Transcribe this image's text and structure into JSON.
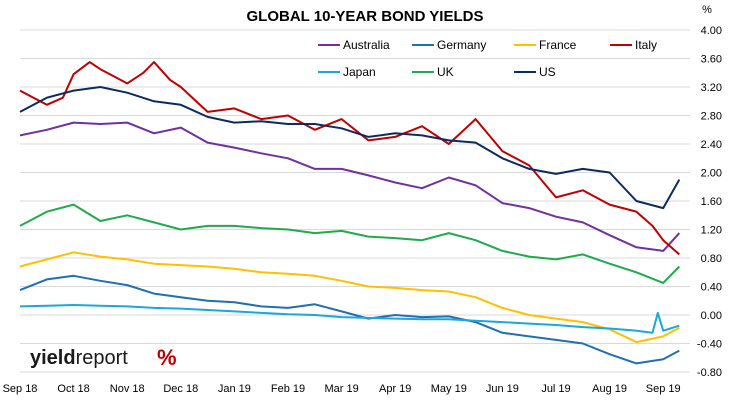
{
  "chart_data": {
    "type": "line",
    "title": "GLOBAL 10-YEAR BOND YIELDS",
    "unit_label": "%",
    "ylim": [
      -0.8,
      4.0
    ],
    "yticks": [
      "4.00",
      "3.60",
      "3.20",
      "2.80",
      "2.40",
      "2.00",
      "1.60",
      "1.20",
      "0.80",
      "0.40",
      "0.00",
      "-0.40",
      "-0.80"
    ],
    "xlim": [
      0,
      12.5
    ],
    "x_tick_labels": [
      "Sep 18",
      "Oct 18",
      "Nov 18",
      "Dec 18",
      "Jan 19",
      "Feb 19",
      "Mar 19",
      "Apr 19",
      "May 19",
      "Jun 19",
      "Jul 19",
      "Aug 19",
      "Sep 19"
    ],
    "grid": true,
    "legend_position": "top-right",
    "series": [
      {
        "name": "Australia",
        "color": "#7030a0",
        "x": [
          0,
          0.5,
          1,
          1.5,
          2,
          2.5,
          3,
          3.5,
          4,
          4.5,
          5,
          5.5,
          6,
          6.5,
          7,
          7.5,
          8,
          8.5,
          9,
          9.5,
          10,
          10.5,
          11,
          11.5,
          12,
          12.3
        ],
        "values": [
          2.52,
          2.6,
          2.7,
          2.68,
          2.7,
          2.55,
          2.63,
          2.42,
          2.35,
          2.27,
          2.2,
          2.05,
          2.05,
          1.96,
          1.86,
          1.78,
          1.93,
          1.82,
          1.57,
          1.5,
          1.38,
          1.3,
          1.12,
          0.95,
          0.9,
          1.15
        ]
      },
      {
        "name": "Germany",
        "color": "#1f6fb2",
        "x": [
          0,
          0.5,
          1,
          1.5,
          2,
          2.5,
          3,
          3.5,
          4,
          4.5,
          5,
          5.5,
          6,
          6.5,
          7,
          7.5,
          8,
          8.5,
          9,
          9.5,
          10,
          10.5,
          11,
          11.5,
          12,
          12.3
        ],
        "values": [
          0.35,
          0.5,
          0.55,
          0.48,
          0.42,
          0.3,
          0.25,
          0.2,
          0.18,
          0.12,
          0.1,
          0.15,
          0.05,
          -0.05,
          0.0,
          -0.03,
          -0.02,
          -0.1,
          -0.25,
          -0.3,
          -0.35,
          -0.4,
          -0.55,
          -0.68,
          -0.62,
          -0.5
        ]
      },
      {
        "name": "France",
        "color": "#ffc000",
        "x": [
          0,
          0.5,
          1,
          1.5,
          2,
          2.5,
          3,
          3.5,
          4,
          4.5,
          5,
          5.5,
          6,
          6.5,
          7,
          7.5,
          8,
          8.5,
          9,
          9.5,
          10,
          10.5,
          11,
          11.5,
          12,
          12.3
        ],
        "values": [
          0.68,
          0.78,
          0.88,
          0.82,
          0.78,
          0.72,
          0.7,
          0.68,
          0.65,
          0.6,
          0.58,
          0.55,
          0.48,
          0.4,
          0.38,
          0.35,
          0.33,
          0.25,
          0.1,
          0.0,
          -0.05,
          -0.1,
          -0.2,
          -0.38,
          -0.3,
          -0.18
        ]
      },
      {
        "name": "Italy",
        "color": "#c00000",
        "x": [
          0,
          0.5,
          0.8,
          1,
          1.3,
          1.5,
          2,
          2.3,
          2.5,
          2.8,
          3,
          3.5,
          4,
          4.5,
          5,
          5.5,
          6,
          6.5,
          7,
          7.5,
          8,
          8.5,
          9,
          9.5,
          10,
          10.5,
          11,
          11.5,
          11.8,
          12,
          12.3
        ],
        "values": [
          3.15,
          2.95,
          3.05,
          3.38,
          3.55,
          3.45,
          3.25,
          3.4,
          3.55,
          3.3,
          3.2,
          2.85,
          2.9,
          2.75,
          2.8,
          2.6,
          2.75,
          2.45,
          2.5,
          2.65,
          2.4,
          2.75,
          2.3,
          2.1,
          1.65,
          1.75,
          1.55,
          1.45,
          1.25,
          1.05,
          0.85
        ]
      },
      {
        "name": "Japan",
        "color": "#1aa7d9",
        "x": [
          0,
          0.5,
          1,
          1.5,
          2,
          2.5,
          3,
          3.5,
          4,
          4.5,
          5,
          5.5,
          6,
          6.5,
          7,
          7.5,
          8,
          8.5,
          9,
          9.5,
          10,
          10.5,
          11,
          11.5,
          11.8,
          11.9,
          12,
          12.3
        ],
        "values": [
          0.12,
          0.13,
          0.14,
          0.13,
          0.12,
          0.1,
          0.09,
          0.07,
          0.05,
          0.03,
          0.01,
          0.0,
          -0.03,
          -0.04,
          -0.05,
          -0.06,
          -0.06,
          -0.08,
          -0.1,
          -0.12,
          -0.14,
          -0.17,
          -0.19,
          -0.22,
          -0.25,
          0.03,
          -0.22,
          -0.15
        ]
      },
      {
        "name": "UK",
        "color": "#1faa4b",
        "x": [
          0,
          0.5,
          1,
          1.5,
          2,
          2.5,
          3,
          3.5,
          4,
          4.5,
          5,
          5.5,
          6,
          6.5,
          7,
          7.5,
          8,
          8.5,
          9,
          9.5,
          10,
          10.5,
          11,
          11.5,
          12,
          12.3
        ],
        "values": [
          1.25,
          1.45,
          1.55,
          1.32,
          1.4,
          1.3,
          1.2,
          1.25,
          1.25,
          1.22,
          1.2,
          1.15,
          1.18,
          1.1,
          1.08,
          1.05,
          1.15,
          1.05,
          0.9,
          0.82,
          0.78,
          0.85,
          0.72,
          0.6,
          0.45,
          0.68
        ]
      },
      {
        "name": "US",
        "color": "#0c2b5e",
        "x": [
          0,
          0.5,
          1,
          1.5,
          2,
          2.5,
          3,
          3.5,
          4,
          4.5,
          5,
          5.5,
          6,
          6.5,
          7,
          7.5,
          8,
          8.5,
          9,
          9.5,
          10,
          10.5,
          11,
          11.5,
          12,
          12.3
        ],
        "values": [
          2.85,
          3.05,
          3.15,
          3.2,
          3.12,
          3.0,
          2.95,
          2.78,
          2.7,
          2.72,
          2.68,
          2.68,
          2.62,
          2.5,
          2.55,
          2.52,
          2.45,
          2.42,
          2.2,
          2.05,
          1.98,
          2.05,
          2.0,
          1.6,
          1.5,
          1.9
        ]
      }
    ]
  },
  "branding": {
    "text_main": "yield",
    "text_light": "report",
    "text_mark": "%"
  }
}
